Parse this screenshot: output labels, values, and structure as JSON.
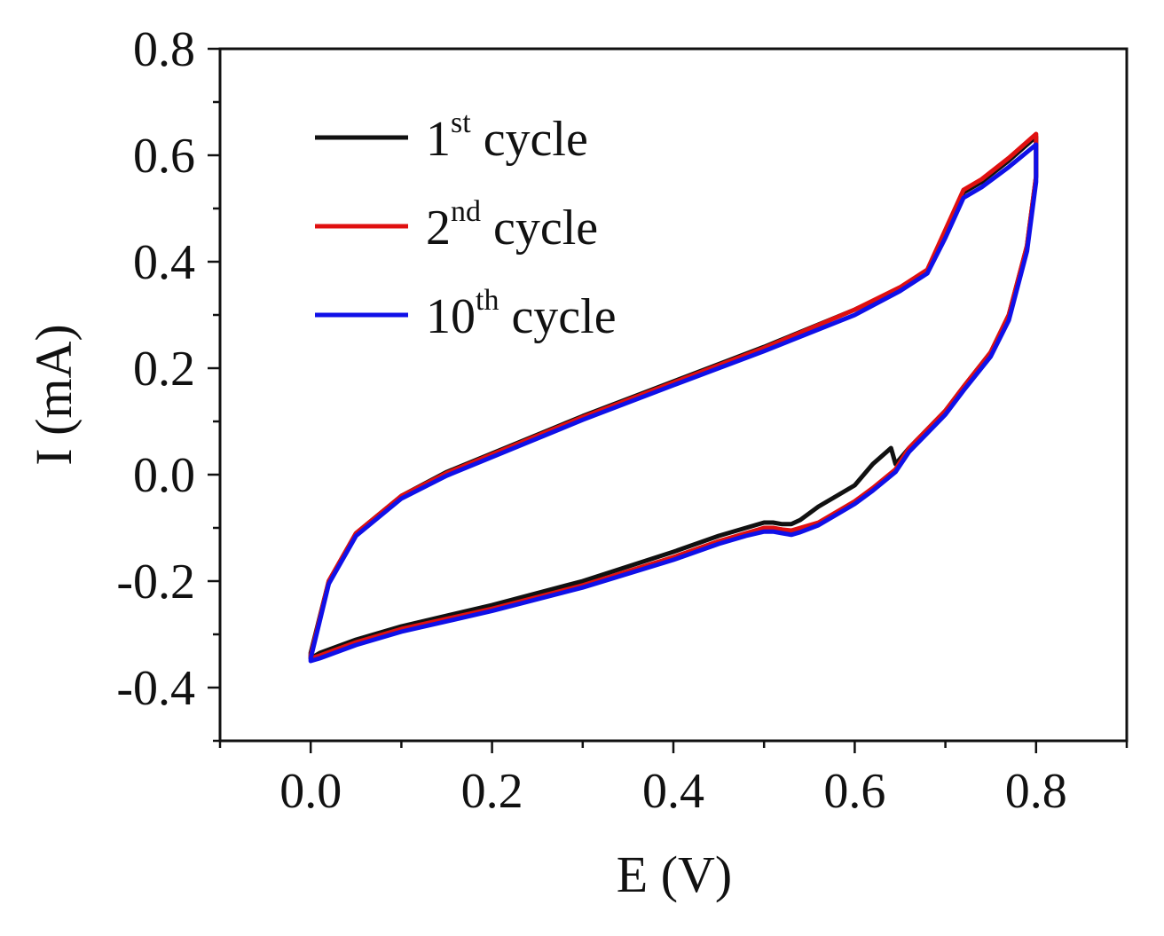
{
  "chart_data": {
    "type": "line",
    "title": "",
    "xlabel": "E (V)",
    "ylabel": "I (mA)",
    "xlim": [
      -0.1,
      0.9
    ],
    "ylim": [
      -0.5,
      0.8
    ],
    "grid": false,
    "x_ticks": [
      0.0,
      0.2,
      0.4,
      0.6,
      0.8
    ],
    "x_tick_labels": [
      "0.0",
      "0.2",
      "0.4",
      "0.6",
      "0.8"
    ],
    "y_ticks": [
      -0.4,
      -0.2,
      0.0,
      0.2,
      0.4,
      0.6,
      0.8
    ],
    "y_tick_labels": [
      "-0.4",
      "-0.2",
      "0.0",
      "0.2",
      "0.4",
      "0.6",
      "0.8"
    ],
    "legend_position": "top-left",
    "series": [
      {
        "name": "1st cycle",
        "legend_main": "1",
        "legend_sup": "st",
        "legend_rest": " cycle",
        "color": "#111111",
        "x": [
          0.0,
          0.02,
          0.05,
          0.1,
          0.15,
          0.2,
          0.3,
          0.4,
          0.5,
          0.6,
          0.65,
          0.68,
          0.7,
          0.72,
          0.74,
          0.77,
          0.8,
          0.8,
          0.79,
          0.77,
          0.75,
          0.72,
          0.7,
          0.68,
          0.66,
          0.645,
          0.64,
          0.62,
          0.6,
          0.58,
          0.56,
          0.54,
          0.53,
          0.52,
          0.51,
          0.5,
          0.48,
          0.45,
          0.4,
          0.3,
          0.2,
          0.1,
          0.05,
          0.01,
          0.0
        ],
        "y": [
          -0.335,
          -0.2,
          -0.11,
          -0.04,
          0.005,
          0.04,
          0.11,
          0.175,
          0.24,
          0.31,
          0.35,
          0.38,
          0.45,
          0.53,
          0.55,
          0.59,
          0.635,
          0.56,
          0.43,
          0.3,
          0.23,
          0.165,
          0.12,
          0.085,
          0.05,
          0.02,
          0.05,
          0.02,
          -0.02,
          -0.04,
          -0.06,
          -0.085,
          -0.093,
          -0.093,
          -0.09,
          -0.09,
          -0.1,
          -0.115,
          -0.145,
          -0.2,
          -0.245,
          -0.285,
          -0.31,
          -0.335,
          -0.345
        ]
      },
      {
        "name": "2nd cycle",
        "legend_main": "2",
        "legend_sup": "nd",
        "legend_rest": " cycle",
        "color": "#e01010",
        "x": [
          0.0,
          0.02,
          0.05,
          0.1,
          0.15,
          0.2,
          0.3,
          0.4,
          0.5,
          0.6,
          0.65,
          0.68,
          0.7,
          0.72,
          0.74,
          0.77,
          0.8,
          0.8,
          0.79,
          0.77,
          0.75,
          0.72,
          0.7,
          0.68,
          0.66,
          0.645,
          0.62,
          0.6,
          0.58,
          0.56,
          0.54,
          0.53,
          0.52,
          0.51,
          0.5,
          0.48,
          0.45,
          0.4,
          0.3,
          0.2,
          0.1,
          0.05,
          0.01,
          0.0
        ],
        "y": [
          -0.34,
          -0.2,
          -0.11,
          -0.04,
          0.003,
          0.038,
          0.108,
          0.173,
          0.238,
          0.31,
          0.352,
          0.385,
          0.46,
          0.535,
          0.555,
          0.595,
          0.64,
          0.56,
          0.43,
          0.3,
          0.23,
          0.165,
          0.12,
          0.085,
          0.05,
          0.01,
          -0.025,
          -0.05,
          -0.07,
          -0.09,
          -0.1,
          -0.105,
          -0.103,
          -0.1,
          -0.1,
          -0.11,
          -0.125,
          -0.155,
          -0.208,
          -0.252,
          -0.29,
          -0.315,
          -0.34,
          -0.345
        ]
      },
      {
        "name": "10th cycle",
        "legend_main": "10",
        "legend_sup": "th",
        "legend_rest": " cycle",
        "color": "#1010e8",
        "x": [
          0.0,
          0.02,
          0.05,
          0.1,
          0.15,
          0.2,
          0.3,
          0.4,
          0.5,
          0.6,
          0.65,
          0.68,
          0.7,
          0.72,
          0.74,
          0.77,
          0.8,
          0.8,
          0.79,
          0.77,
          0.75,
          0.72,
          0.7,
          0.68,
          0.66,
          0.645,
          0.62,
          0.6,
          0.58,
          0.56,
          0.54,
          0.53,
          0.52,
          0.51,
          0.5,
          0.48,
          0.45,
          0.4,
          0.3,
          0.2,
          0.1,
          0.05,
          0.01,
          0.0
        ],
        "y": [
          -0.345,
          -0.205,
          -0.115,
          -0.045,
          -0.002,
          0.033,
          0.103,
          0.168,
          0.232,
          0.3,
          0.345,
          0.378,
          0.445,
          0.52,
          0.54,
          0.578,
          0.62,
          0.55,
          0.42,
          0.29,
          0.222,
          0.158,
          0.113,
          0.078,
          0.043,
          0.005,
          -0.03,
          -0.055,
          -0.075,
          -0.095,
          -0.108,
          -0.113,
          -0.11,
          -0.107,
          -0.107,
          -0.115,
          -0.13,
          -0.16,
          -0.212,
          -0.256,
          -0.295,
          -0.32,
          -0.345,
          -0.35
        ]
      }
    ]
  }
}
